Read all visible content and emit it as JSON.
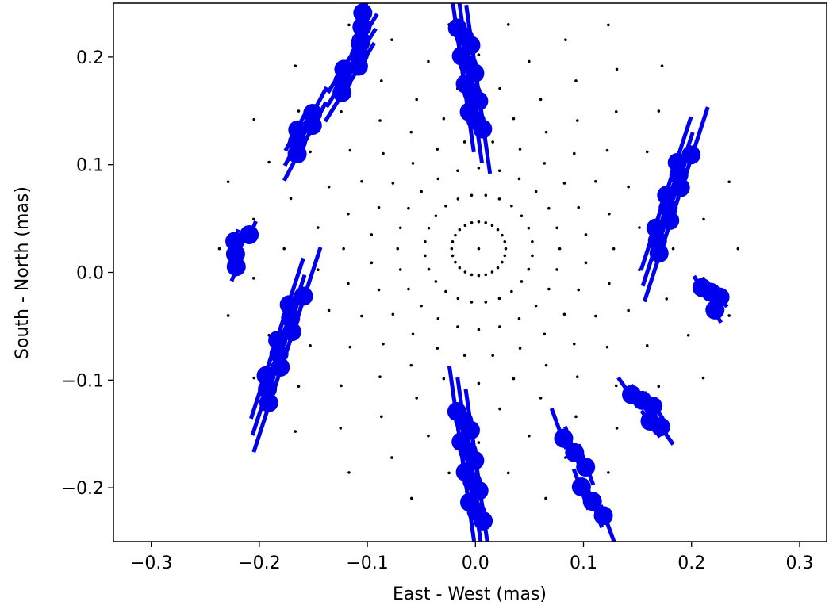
{
  "chart_data": {
    "type": "scatter",
    "title": "",
    "xlabel": "East - West (mas)",
    "ylabel": "South - North (mas)",
    "xlim": [
      -0.335,
      0.325
    ],
    "ylim": [
      -0.25,
      0.25
    ],
    "x_ticks": [
      -0.3,
      -0.2,
      -0.1,
      0.0,
      0.1,
      0.2,
      0.3
    ],
    "x_tick_labels": [
      "−0.3",
      "−0.2",
      "−0.1",
      "0.0",
      "0.1",
      "0.2",
      "0.3"
    ],
    "y_ticks": [
      -0.2,
      -0.1,
      0.0,
      0.1,
      0.2
    ],
    "y_tick_labels": [
      "−0.2",
      "−0.1",
      "0.0",
      "0.1",
      "0.2"
    ],
    "grid": false,
    "colors": {
      "measurements": "#0000ee",
      "model_grid": "#000000"
    },
    "model_grid": {
      "center": [
        0.003,
        0.022
      ],
      "rings": [
        {
          "radius": 0.025,
          "count": 24
        },
        {
          "radius": 0.05,
          "count": 24
        },
        {
          "radius": 0.075,
          "count": 24
        },
        {
          "radius": 0.1,
          "count": 24
        },
        {
          "radius": 0.125,
          "count": 24
        },
        {
          "radius": 0.15,
          "count": 24
        },
        {
          "radius": 0.18,
          "count": 24
        },
        {
          "radius": 0.21,
          "count": 24
        },
        {
          "radius": 0.24,
          "count": 24
        }
      ]
    },
    "measurements": [
      {
        "x": -0.105,
        "y": 0.228,
        "angle": 64,
        "len": 0.025,
        "n": 3,
        "spread": 0.03
      },
      {
        "x": -0.115,
        "y": 0.19,
        "angle": 58,
        "len": 0.05,
        "n": 6,
        "spread": 0.06
      },
      {
        "x": -0.16,
        "y": 0.13,
        "angle": 62,
        "len": 0.045,
        "n": 5,
        "spread": 0.05
      },
      {
        "x": -0.22,
        "y": 0.022,
        "angle": 68,
        "len": 0.02,
        "n": 4,
        "spread": 0.04
      },
      {
        "x": -0.18,
        "y": -0.07,
        "angle": 72,
        "len": 0.07,
        "n": 10,
        "spread": 0.13
      },
      {
        "x": -0.005,
        "y": -0.18,
        "angle": -82,
        "len": 0.06,
        "n": 12,
        "spread": 0.13
      },
      {
        "x": 0.1,
        "y": -0.19,
        "angle": -70,
        "len": 0.04,
        "n": 6,
        "spread": 0.1
      },
      {
        "x": 0.16,
        "y": -0.127,
        "angle": -55,
        "len": 0.03,
        "n": 5,
        "spread": 0.05
      },
      {
        "x": 0.22,
        "y": -0.022,
        "angle": -60,
        "len": 0.02,
        "n": 4,
        "spread": 0.03
      },
      {
        "x": 0.18,
        "y": 0.065,
        "angle": 72,
        "len": 0.07,
        "n": 10,
        "spread": 0.12
      },
      {
        "x": -0.005,
        "y": 0.18,
        "angle": -82,
        "len": 0.06,
        "n": 12,
        "spread": 0.12
      }
    ]
  }
}
